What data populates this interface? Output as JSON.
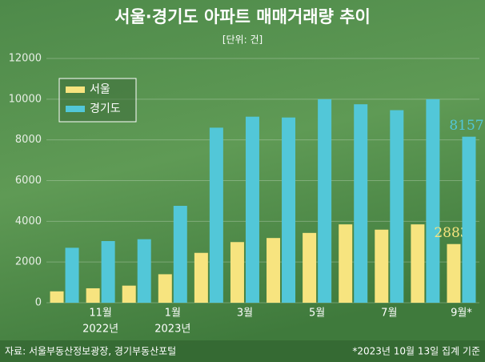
{
  "chart_data": {
    "type": "bar",
    "title": "서울·경기도 아파트 매매거래량 추이",
    "subtitle": "[단위: 건]",
    "categories": [
      null,
      "11월",
      null,
      "1월",
      null,
      "3월",
      null,
      "5월",
      null,
      "7월",
      null,
      "9월*"
    ],
    "x_sublabels": [
      null,
      "2022년",
      null,
      "2023년",
      null,
      null,
      null,
      null,
      null,
      null,
      null,
      null
    ],
    "series": [
      {
        "name": "서울",
        "color": "#f7e47f",
        "values": [
          560,
          710,
          840,
          1400,
          2450,
          2980,
          3180,
          3430,
          3850,
          3590,
          3850,
          2883
        ]
      },
      {
        "name": "경기도",
        "color": "#52c7d8",
        "values": [
          2700,
          3030,
          3120,
          4760,
          8600,
          9140,
          9100,
          10000,
          9750,
          9460,
          10000,
          8157
        ]
      }
    ],
    "label_last": true,
    "ylim": [
      0,
      12000
    ],
    "yticks": [
      0,
      2000,
      4000,
      6000,
      8000,
      10000,
      12000
    ],
    "grid": true,
    "legend": "upper left",
    "source": "자료: 서울부동산정보광장, 경기부동산포털",
    "note": "*2023년 10월 13일 집계 기준"
  }
}
